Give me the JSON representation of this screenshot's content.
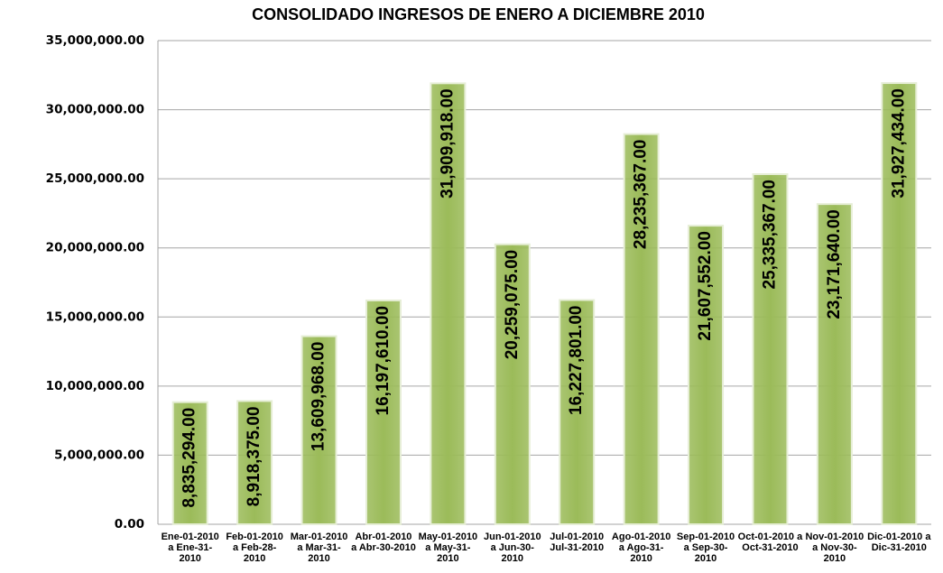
{
  "chart_data": {
    "type": "bar",
    "title": "CONSOLIDADO INGRESOS DE ENERO A DICIEMBRE 2010",
    "categories": [
      "Ene-01-2010 a Ene-31-2010",
      "Feb-01-2010 a Feb-28-2010",
      "Mar-01-2010 a Mar-31-2010",
      "Abr-01-2010 a Abr-30-2010",
      "May-01-2010 a May-31-2010",
      "Jun-01-2010 a Jun-30-2010",
      "Jul-01-2010 Jul-31-2010",
      "Ago-01-2010 a Ago-31-2010",
      "Sep-01-2010 a Sep-30-2010",
      "Oct-01-2010 a Oct-31-2010",
      "Nov-01-2010 a Nov-30-2010",
      "Dic-01-2010 a Dic-31-2010"
    ],
    "values": [
      8835294,
      8918375,
      13609968,
      16197610,
      31909918,
      20259075,
      16227801,
      28235367,
      21607552,
      25335367,
      23171640,
      31927434
    ],
    "value_labels": [
      "8,835,294.00",
      "8,918,375.00",
      "13,609,968.00",
      "16,197,610.00",
      "31,909,918.00",
      "20,259,075.00",
      "16,227,801.00",
      "28,235,367.00",
      "21,607,552.00",
      "25,335,367.00",
      "23,171,640.00",
      "31,927,434.00"
    ],
    "color": "#9bbb59",
    "ylim": [
      0,
      35000000
    ],
    "yticks": [
      {
        "value": 0,
        "label": "0.00"
      },
      {
        "value": 5000000,
        "label": "5,000,000.00"
      },
      {
        "value": 10000000,
        "label": "10,000,000.00"
      },
      {
        "value": 15000000,
        "label": "15,000,000.00"
      },
      {
        "value": 20000000,
        "label": "20,000,000.00"
      },
      {
        "value": 25000000,
        "label": "25,000,000.00"
      },
      {
        "value": 30000000,
        "label": "30,000,000.00"
      },
      {
        "value": 35000000,
        "label": "35,000,000.00"
      }
    ],
    "grid": true
  }
}
